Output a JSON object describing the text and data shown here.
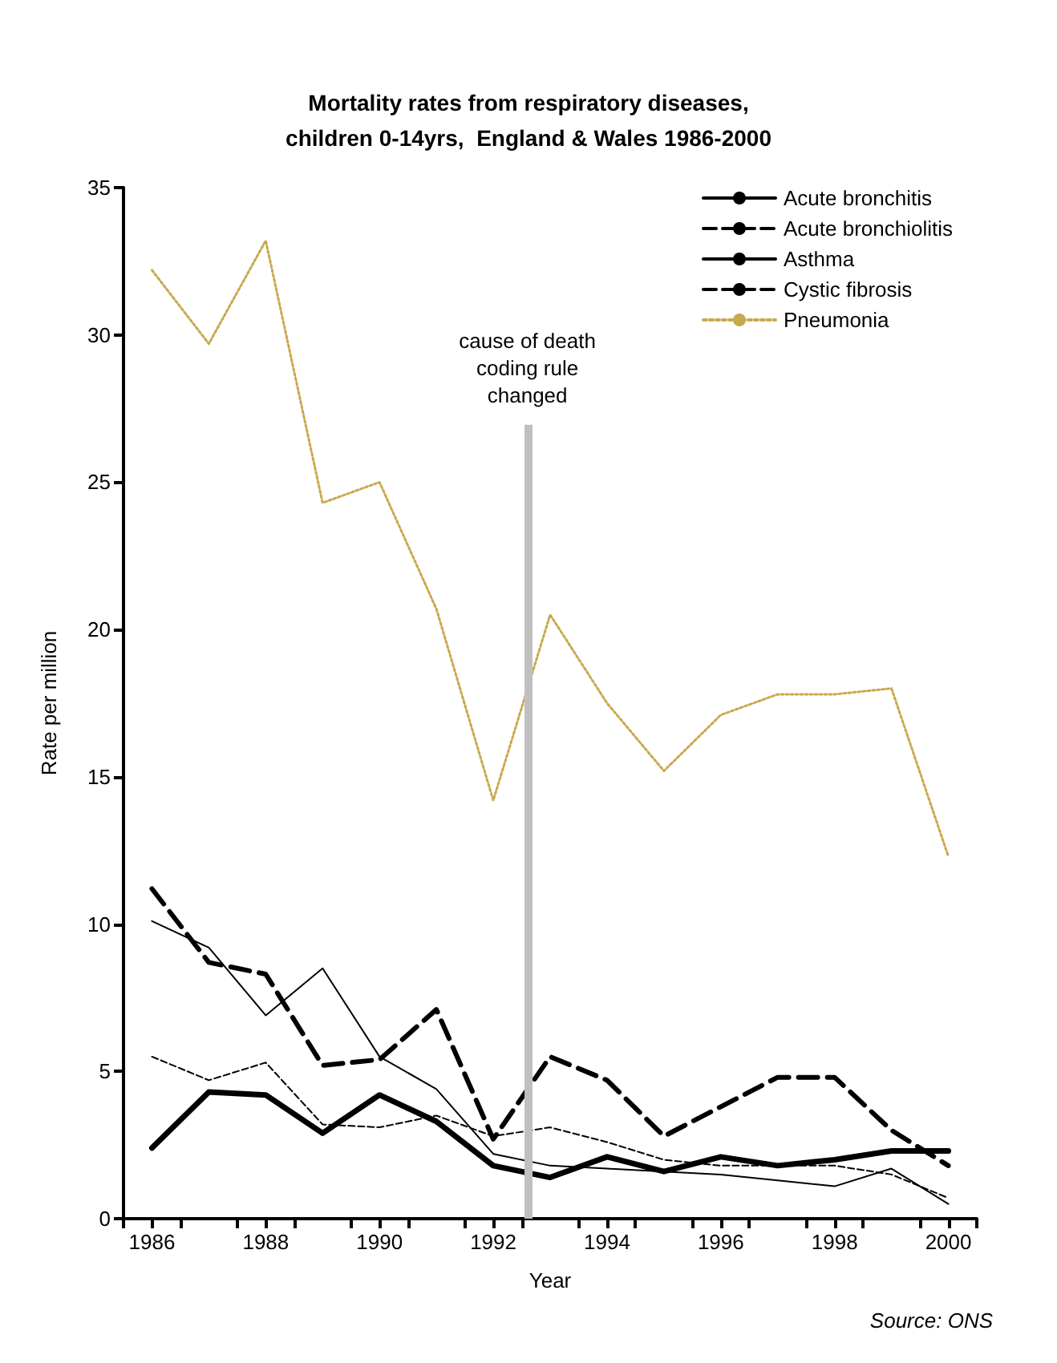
{
  "chart_data": {
    "type": "line",
    "title": "Mortality rates from respiratory diseases,\nchildren 0-14yrs,  England & Wales 1986-2000",
    "xlabel": "Year",
    "ylabel": "Rate per million",
    "x": [
      1986,
      1987,
      1988,
      1989,
      1990,
      1991,
      1992,
      1993,
      1994,
      1995,
      1996,
      1997,
      1998,
      1999,
      2000
    ],
    "series": [
      {
        "name": "Acute bronchitis",
        "color": "#000000",
        "line_style": "solid",
        "values": [
          10.1,
          9.2,
          6.9,
          8.5,
          5.5,
          4.4,
          2.2,
          1.8,
          1.7,
          1.6,
          1.5,
          1.3,
          1.1,
          1.7,
          0.5
        ]
      },
      {
        "name": "Acute bronchiolitis",
        "color": "#000000",
        "line_style": "dashed",
        "values": [
          11.2,
          8.7,
          8.3,
          5.2,
          5.4,
          7.1,
          2.7,
          5.5,
          4.7,
          2.8,
          3.8,
          4.8,
          4.8,
          3.0,
          1.8
        ]
      },
      {
        "name": "Asthma",
        "color": "#000000",
        "line_style": "solid",
        "values": [
          2.4,
          4.3,
          4.2,
          2.9,
          4.2,
          3.3,
          1.8,
          1.4,
          2.1,
          1.6,
          2.1,
          1.8,
          2.0,
          2.3,
          2.3
        ]
      },
      {
        "name": "Cystic fibrosis",
        "color": "#000000",
        "line_style": "dashed",
        "values": [
          5.5,
          4.7,
          5.3,
          3.2,
          3.1,
          3.5,
          2.8,
          3.1,
          2.6,
          2.0,
          1.8,
          1.8,
          1.8,
          1.5,
          0.7
        ]
      },
      {
        "name": "Pneumonia",
        "color": "#c9a94e",
        "line_style": "dotted",
        "values": [
          32.2,
          29.7,
          33.2,
          24.3,
          25.0,
          20.7,
          14.2,
          20.5,
          17.5,
          15.2,
          17.1,
          17.8,
          17.8,
          18.0,
          12.3
        ]
      }
    ],
    "xlim": [
      1985.5,
      2000.5
    ],
    "xticks": [
      {
        "value": 1985.5,
        "label": null
      },
      1986,
      {
        "value": 1986.5,
        "label": null
      },
      {
        "value": 1987.5,
        "label": null
      },
      1988,
      {
        "value": 1988.5,
        "label": null
      },
      {
        "value": 1989.5,
        "label": null
      },
      1990,
      {
        "value": 1990.5,
        "label": null
      },
      {
        "value": 1991.5,
        "label": null
      },
      1992,
      {
        "value": 1992.5,
        "label": null
      },
      {
        "value": 1993.5,
        "label": null
      },
      1994,
      {
        "value": 1994.5,
        "label": null
      },
      {
        "value": 1995.5,
        "label": null
      },
      1996,
      {
        "value": 1996.5,
        "label": null
      },
      {
        "value": 1997.5,
        "label": null
      },
      1998,
      {
        "value": 1998.5,
        "label": null
      },
      {
        "value": 1999.5,
        "label": null
      },
      2000,
      {
        "value": 2000.5,
        "label": null
      }
    ],
    "ylim": [
      0,
      35
    ],
    "yticks": [
      0,
      5,
      10,
      15,
      20,
      25,
      30,
      35
    ],
    "ref_lines": [
      {
        "axis": "x",
        "value": 1992.6,
        "label": "cause of death\ncoding rule\nchanged",
        "color": "#c0c0c0"
      }
    ],
    "annotations": [
      "Source: ONS"
    ],
    "grid": false,
    "legend": "top right",
    "marker": "none"
  }
}
